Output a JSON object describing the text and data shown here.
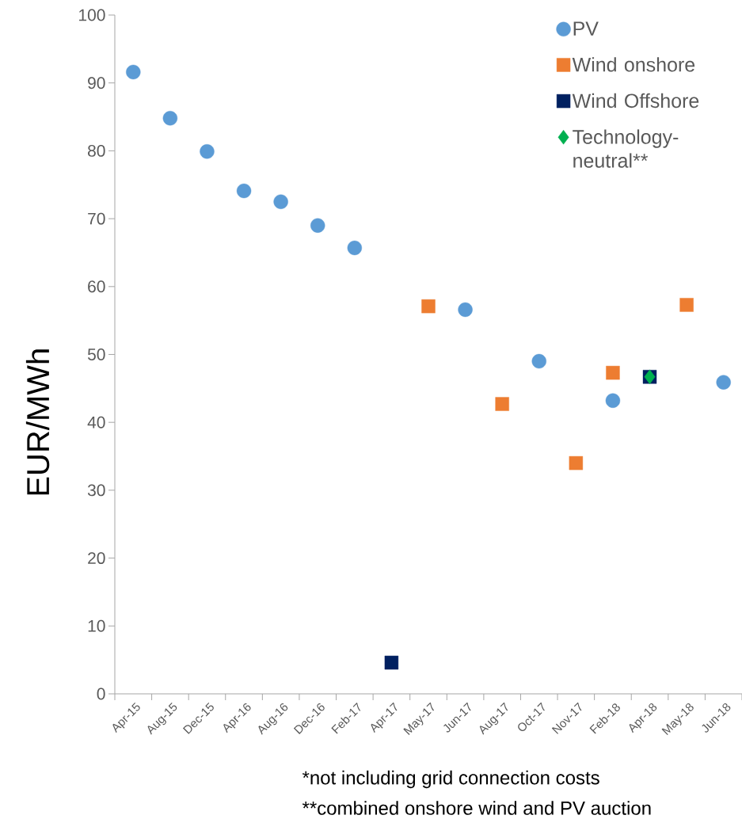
{
  "chart_data": {
    "type": "scatter",
    "ylabel": "EUR/MWh",
    "categories": [
      "Apr-15",
      "Aug-15",
      "Dec-15",
      "Apr-16",
      "Aug-16",
      "Dec-16",
      "Feb-17",
      "Apr-17",
      "May-17",
      "Jun-17",
      "Aug-17",
      "Oct-17",
      "Nov-17",
      "Feb-18",
      "Apr-18",
      "May-18",
      "Jun-18"
    ],
    "series": [
      {
        "name": "PV",
        "color": "#5b9bd5",
        "marker": "circle",
        "values": [
          91.6,
          84.8,
          79.9,
          74.1,
          72.5,
          69.0,
          65.7,
          null,
          null,
          56.6,
          null,
          49.0,
          null,
          43.2,
          null,
          null,
          45.9
        ]
      },
      {
        "name": "Wind onshore",
        "color": "#ed7d31",
        "marker": "square",
        "values": [
          null,
          null,
          null,
          null,
          null,
          null,
          null,
          null,
          57.1,
          null,
          42.7,
          null,
          34.0,
          47.3,
          null,
          57.3,
          null
        ]
      },
      {
        "name": "Wind Offshore",
        "color": "#002060",
        "marker": "square",
        "values": [
          null,
          null,
          null,
          null,
          null,
          null,
          null,
          4.6,
          null,
          null,
          null,
          null,
          null,
          null,
          46.7,
          null,
          null
        ]
      },
      {
        "name": "Technology-neutral**",
        "color": "#00b050",
        "marker": "diamond",
        "values": [
          null,
          null,
          null,
          null,
          null,
          null,
          null,
          null,
          null,
          null,
          null,
          null,
          null,
          null,
          46.7,
          null,
          null
        ]
      }
    ],
    "ylim": [
      0,
      100
    ],
    "yticks": [
      0,
      10,
      20,
      30,
      40,
      50,
      60,
      70,
      80,
      90,
      100
    ],
    "legend": "top right",
    "annotations": [
      "*not including grid connection costs",
      "**combined onshore wind and PV auction"
    ]
  }
}
